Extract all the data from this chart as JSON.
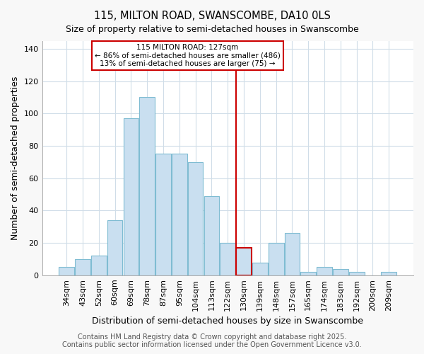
{
  "title": "115, MILTON ROAD, SWANSCOMBE, DA10 0LS",
  "subtitle": "Size of property relative to semi-detached houses in Swanscombe",
  "xlabel": "Distribution of semi-detached houses by size in Swanscombe",
  "ylabel": "Number of semi-detached properties",
  "categories": [
    "34sqm",
    "43sqm",
    "52sqm",
    "60sqm",
    "69sqm",
    "78sqm",
    "87sqm",
    "95sqm",
    "104sqm",
    "113sqm",
    "122sqm",
    "130sqm",
    "139sqm",
    "148sqm",
    "157sqm",
    "165sqm",
    "174sqm",
    "183sqm",
    "192sqm",
    "200sqm",
    "209sqm"
  ],
  "values": [
    5,
    10,
    12,
    34,
    97,
    110,
    75,
    75,
    70,
    49,
    20,
    17,
    8,
    20,
    26,
    2,
    5,
    4,
    2,
    0,
    2
  ],
  "bar_color": "#c9dff0",
  "bar_edge_color": "#7fbcd2",
  "highlight_index": 11,
  "highlight_color": "#cc0000",
  "vline_label": "115 MILTON ROAD: 127sqm",
  "annotation_line1": "← 86% of semi-detached houses are smaller (486)",
  "annotation_line2": "13% of semi-detached houses are larger (75) →",
  "box_color": "#cc0000",
  "ylim": [
    0,
    145
  ],
  "yticks": [
    0,
    20,
    40,
    60,
    80,
    100,
    120,
    140
  ],
  "footer1": "Contains HM Land Registry data © Crown copyright and database right 2025.",
  "footer2": "Contains public sector information licensed under the Open Government Licence v3.0.",
  "background_color": "#f8f8f8",
  "plot_background": "#ffffff",
  "grid_color": "#d0dde8",
  "title_fontsize": 10.5,
  "subtitle_fontsize": 9,
  "axis_label_fontsize": 9,
  "tick_fontsize": 8,
  "footer_fontsize": 7
}
